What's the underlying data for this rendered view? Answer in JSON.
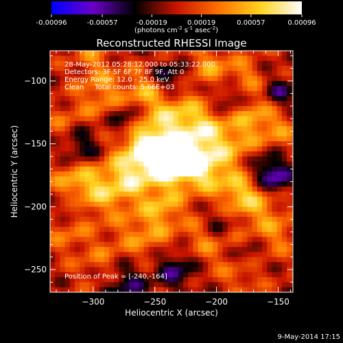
{
  "chart_data": {
    "type": "heatmap",
    "title": "Reconstructed RHESSI Image",
    "xlabel": "Heliocentric X (arcsec)",
    "ylabel": "Heliocentric Y (arcsec)",
    "xlim": [
      -335,
      -138
    ],
    "ylim": [
      -268,
      -76
    ],
    "x_ticks": [
      -300,
      -250,
      -200,
      -150
    ],
    "y_ticks": [
      -100,
      -150,
      -200,
      -250
    ],
    "colorbar": {
      "ticks": [
        "-0.00096",
        "-0.00057",
        "-0.00019",
        "0.00019",
        "0.00057",
        "0.00096"
      ],
      "values": [
        -0.00096,
        -0.00057,
        -0.00019,
        0.00019,
        0.00057,
        0.00096
      ],
      "range": [
        -0.00096,
        0.00096
      ],
      "colors": [
        "#0000ff",
        "#6a00c8",
        "#000000",
        "#c81400",
        "#ff7000",
        "#ffd21e",
        "#ffffff"
      ]
    },
    "units_line1": "(photons cm",
    "units_sup1": "-2",
    "units_line2": " s",
    "units_sup2": "-1",
    "units_line3": " asec",
    "units_sup3": "-2",
    "units_close": ")",
    "annotations": [
      "28-May-2012 05:28:12.000 to 05:33:22.000",
      "Detectors: 3F 5F 6F 7F 8F 9F, Att 0",
      "Energy Range: 12.0 - 25.0 keV",
      "Clean     Total counts: 5.66E+03"
    ],
    "peak_label": "Position of Peak = [-240,-164]",
    "peak": [
      -240,
      -164
    ],
    "features": [
      {
        "x": -240,
        "y": -164,
        "r": 14,
        "v": 0.00096
      },
      {
        "x": -258,
        "y": -150,
        "r": 14,
        "v": 0.0008
      },
      {
        "x": -222,
        "y": -162,
        "r": 12,
        "v": 0.0007
      },
      {
        "x": -206,
        "y": -172,
        "r": 13,
        "v": 0.00055
      },
      {
        "x": -272,
        "y": -178,
        "r": 14,
        "v": 0.0006
      },
      {
        "x": -300,
        "y": -188,
        "r": 15,
        "v": 0.0005
      },
      {
        "x": -318,
        "y": -178,
        "r": 12,
        "v": 0.00035
      },
      {
        "x": -232,
        "y": -128,
        "r": 14,
        "v": 0.00055
      },
      {
        "x": -210,
        "y": -138,
        "r": 12,
        "v": 0.0005
      },
      {
        "x": -188,
        "y": -150,
        "r": 13,
        "v": 0.00045
      },
      {
        "x": -170,
        "y": -128,
        "r": 12,
        "v": 0.0004
      },
      {
        "x": -150,
        "y": -140,
        "r": 12,
        "v": 0.00032
      },
      {
        "x": -168,
        "y": -198,
        "r": 14,
        "v": 0.00045
      },
      {
        "x": -184,
        "y": -188,
        "r": 10,
        "v": 0.0004
      },
      {
        "x": -150,
        "y": -222,
        "r": 12,
        "v": 0.0003
      },
      {
        "x": -292,
        "y": -110,
        "r": 14,
        "v": 0.0004
      },
      {
        "x": -320,
        "y": -138,
        "r": 13,
        "v": 0.00035
      },
      {
        "x": -258,
        "y": -110,
        "r": 12,
        "v": 0.00045
      },
      {
        "x": -205,
        "y": -88,
        "r": 12,
        "v": 0.0004
      },
      {
        "x": -178,
        "y": -96,
        "r": 10,
        "v": 0.00035
      },
      {
        "x": -258,
        "y": -222,
        "r": 16,
        "v": 0.0004
      },
      {
        "x": -292,
        "y": -245,
        "r": 14,
        "v": 0.0003
      },
      {
        "x": -212,
        "y": -230,
        "r": 14,
        "v": 0.00032
      },
      {
        "x": -180,
        "y": -252,
        "r": 12,
        "v": 0.00028
      },
      {
        "x": -322,
        "y": -220,
        "r": 12,
        "v": 0.00028
      },
      {
        "x": -242,
        "y": -200,
        "r": 11,
        "v": 0.0004
      },
      {
        "x": -300,
        "y": -80,
        "r": 10,
        "v": 0.0003
      },
      {
        "x": -312,
        "y": -150,
        "r": 12,
        "v": -0.00055
      },
      {
        "x": -272,
        "y": -130,
        "r": 10,
        "v": -0.0005
      },
      {
        "x": -158,
        "y": -170,
        "r": 10,
        "v": -0.0005
      },
      {
        "x": -148,
        "y": -110,
        "r": 9,
        "v": -0.0004
      },
      {
        "x": -275,
        "y": -260,
        "r": 14,
        "v": -0.00045
      },
      {
        "x": -232,
        "y": -248,
        "r": 12,
        "v": -0.0005
      },
      {
        "x": -238,
        "y": -98,
        "r": 10,
        "v": -0.00045
      },
      {
        "x": -190,
        "y": -112,
        "r": 9,
        "v": -0.00035
      },
      {
        "x": -150,
        "y": -180,
        "r": 9,
        "v": -0.0004
      },
      {
        "x": -318,
        "y": -200,
        "r": 9,
        "v": -0.00035
      },
      {
        "x": -198,
        "y": -212,
        "r": 8,
        "v": -0.0003
      },
      {
        "x": -175,
        "y": -240,
        "r": 8,
        "v": -0.0003
      }
    ]
  },
  "footer": {
    "timestamp": "9-May-2014 17:15"
  }
}
